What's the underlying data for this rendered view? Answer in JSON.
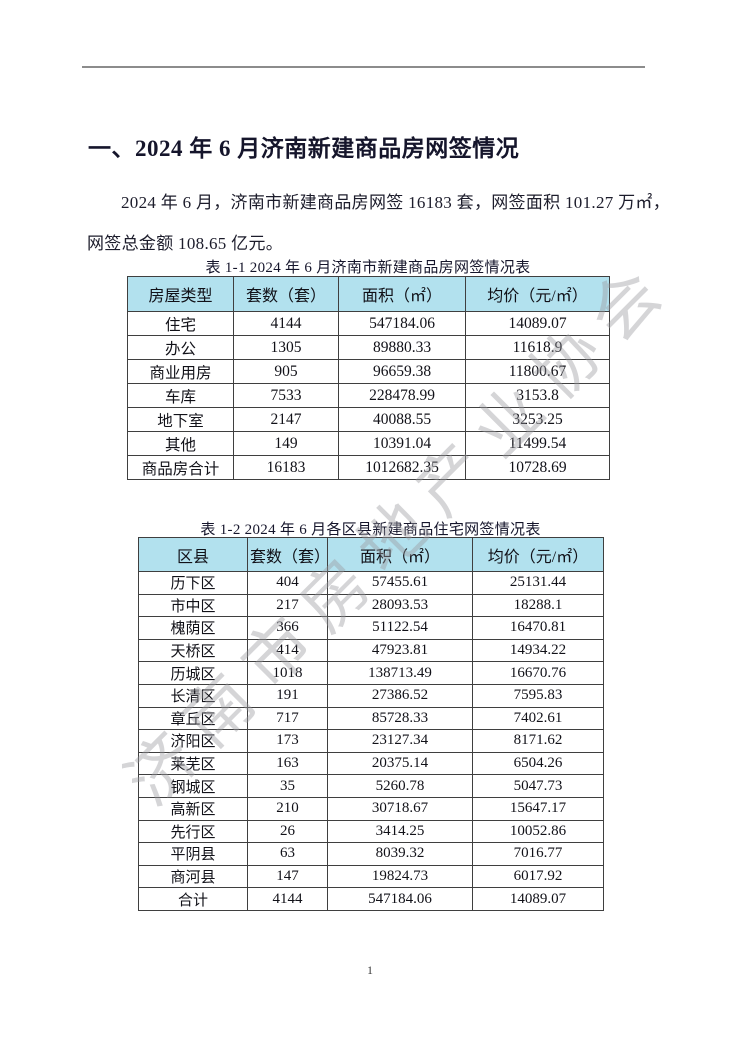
{
  "heading": "一、2024 年 6 月济南新建商品房网签情况",
  "paragraph": {
    "line1": "2024 年 6 月，济南市新建商品房网签 16183 套，网签面积 101.27 万㎡，",
    "line2": "网签总金额 108.65 亿元。"
  },
  "tables": [
    {
      "caption": "表 1-1  2024 年 6 月济南市新建商品房网签情况表",
      "headers": [
        "房屋类型",
        "套数（套）",
        "面积（㎡）",
        "均价（元/㎡）"
      ],
      "rows": [
        [
          "住宅",
          "4144",
          "547184.06",
          "14089.07"
        ],
        [
          "办公",
          "1305",
          "89880.33",
          "11618.9"
        ],
        [
          "商业用房",
          "905",
          "96659.38",
          "11800.67"
        ],
        [
          "车库",
          "7533",
          "228478.99",
          "3153.8"
        ],
        [
          "地下室",
          "2147",
          "40088.55",
          "3253.25"
        ],
        [
          "其他",
          "149",
          "10391.04",
          "11499.54"
        ],
        [
          "商品房合计",
          "16183",
          "1012682.35",
          "10728.69"
        ]
      ]
    },
    {
      "caption": "表 1-2  2024 年 6 月各区县新建商品住宅网签情况表",
      "headers": [
        "区县",
        "套数（套）",
        "面积（㎡）",
        "均价（元/㎡）"
      ],
      "rows": [
        [
          "历下区",
          "404",
          "57455.61",
          "25131.44"
        ],
        [
          "市中区",
          "217",
          "28093.53",
          "18288.1"
        ],
        [
          "槐荫区",
          "366",
          "51122.54",
          "16470.81"
        ],
        [
          "天桥区",
          "414",
          "47923.81",
          "14934.22"
        ],
        [
          "历城区",
          "1018",
          "138713.49",
          "16670.76"
        ],
        [
          "长清区",
          "191",
          "27386.52",
          "7595.83"
        ],
        [
          "章丘区",
          "717",
          "85728.33",
          "7402.61"
        ],
        [
          "济阳区",
          "173",
          "23127.34",
          "8171.62"
        ],
        [
          "莱芜区",
          "163",
          "20375.14",
          "6504.26"
        ],
        [
          "钢城区",
          "35",
          "5260.78",
          "5047.73"
        ],
        [
          "高新区",
          "210",
          "30718.67",
          "15647.17"
        ],
        [
          "先行区",
          "26",
          "3414.25",
          "10052.86"
        ],
        [
          "平阴县",
          "63",
          "8039.32",
          "7016.77"
        ],
        [
          "商河县",
          "147",
          "19824.73",
          "6017.92"
        ],
        [
          "合计",
          "4144",
          "547184.06",
          "14089.07"
        ]
      ]
    }
  ],
  "watermark": "济南市房地产业协会",
  "page": {
    "number": "1"
  },
  "colors": {
    "table_header_bg": "#b2e1ee",
    "table_border": "#3f3f3f",
    "watermark_gray": "#9b9ba0",
    "rule_gray": "#8c8c8c"
  }
}
